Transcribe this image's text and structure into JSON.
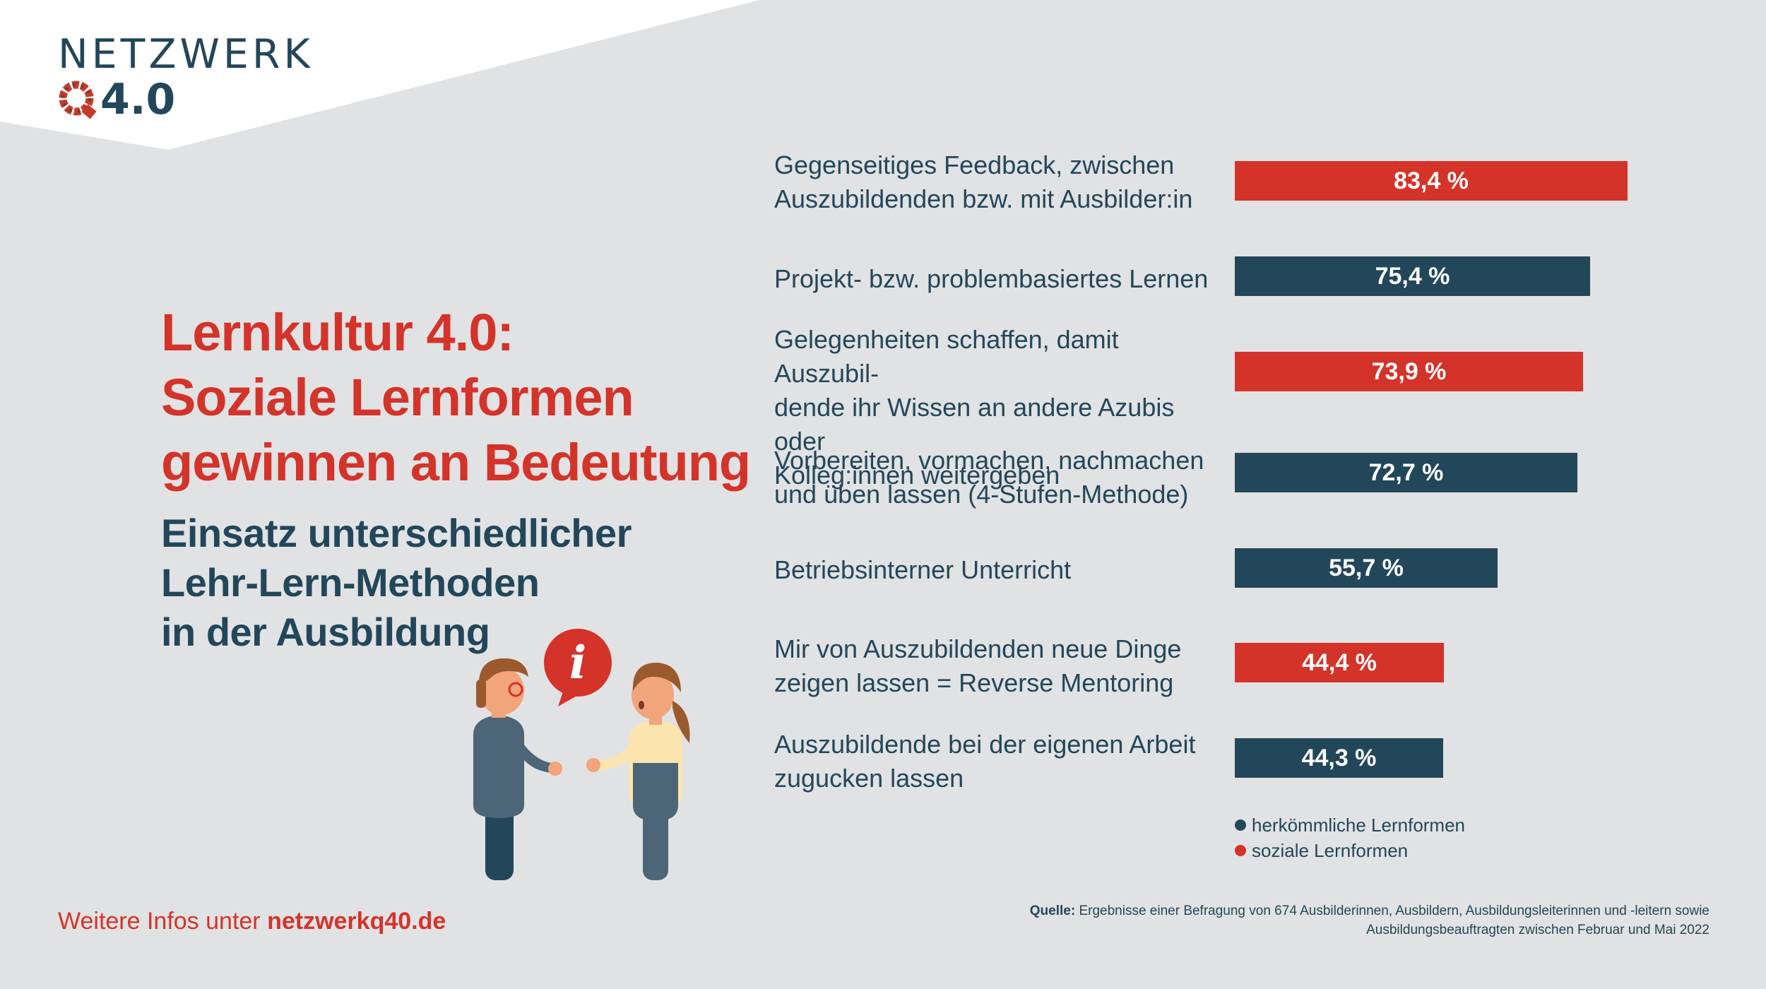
{
  "logo": {
    "word": "NETZWERK",
    "number": "4.0"
  },
  "title": "Lernkultur 4.0:\nSoziale Lernformen\ngewinnen an Bedeutung",
  "subtitle": "Einsatz unterschiedlicher\nLehr-Lern-Methoden\nin der Ausbildung",
  "colors": {
    "accent_red": "#d4332a",
    "dark_blue": "#23475a",
    "background": "#e1e2e3"
  },
  "illustration": {
    "info_badge": "i"
  },
  "chart_data": {
    "type": "bar",
    "orientation": "horizontal",
    "xlim": [
      0,
      100
    ],
    "categories": [
      "Gegenseitiges Feedback, zwischen\nAuszubildenden bzw. mit Ausbilder:in",
      "Projekt- bzw. problembasiertes Lernen",
      "Gelegenheiten schaffen, damit Auszubil-\ndende ihr Wissen an andere Azubis oder\nKolleg:innen weitergeben",
      "Vorbereiten, vormachen, nachmachen\nund üben lassen (4-Stufen-Methode)",
      "Betriebsinterner Unterricht",
      "Mir von Auszubildenden neue Dinge\nzeigen lassen = Reverse Mentoring",
      "Auszubildende bei der eigenen Arbeit\nzugucken lassen"
    ],
    "values": [
      83.4,
      75.4,
      73.9,
      72.7,
      55.7,
      44.4,
      44.3
    ],
    "value_labels": [
      "83,4 %",
      "75,4 %",
      "73,9 %",
      "72,7 %",
      "55,7 %",
      "44,4 %",
      "44,3 %"
    ],
    "groups": [
      "soziale Lernformen",
      "herkömmliche Lernformen",
      "soziale Lernformen",
      "herkömmliche Lernformen",
      "herkömmliche Lernformen",
      "soziale Lernformen",
      "herkömmliche Lernformen"
    ],
    "legend": [
      {
        "label": "herkömmliche Lernformen",
        "color": "#23475a"
      },
      {
        "label": "soziale Lernformen",
        "color": "#d4332a"
      }
    ]
  },
  "footer": {
    "prefix": "Weitere Infos unter ",
    "link": "netzwerkq40.de"
  },
  "source": {
    "label": "Quelle:",
    "text": " Ergebnisse einer Befragung von 674 Ausbilderinnen, Ausbildern, Ausbildungsleiterinnen und -leitern sowie Ausbildungsbeauftragten zwischen Februar und Mai 2022"
  }
}
